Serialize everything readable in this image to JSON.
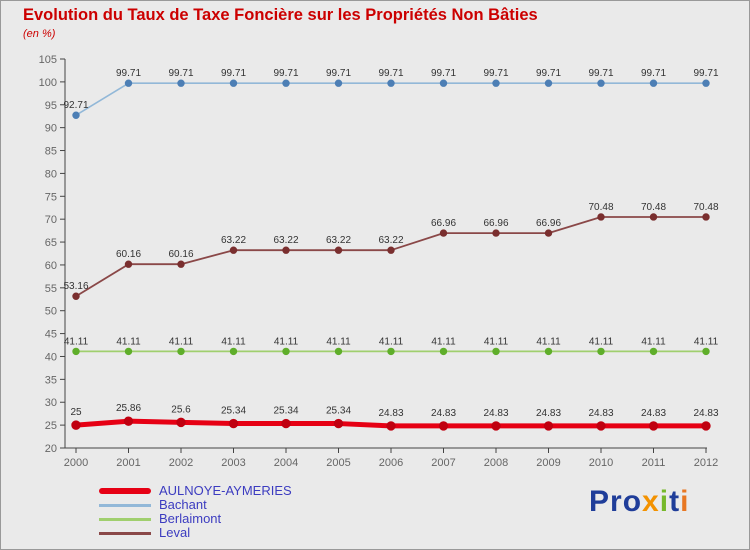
{
  "chart_data": {
    "type": "line",
    "title": "Evolution du Taux de Taxe Foncière sur les Propriétés Non Bâties",
    "subtitle": "(en %)",
    "x": [
      2000,
      2001,
      2002,
      2003,
      2004,
      2005,
      2006,
      2007,
      2008,
      2009,
      2010,
      2011,
      2012
    ],
    "ylim": [
      20,
      105
    ],
    "ytick_step": 5,
    "grid": false,
    "legend_position": "bottom-left",
    "series": [
      {
        "name": "AULNOYE-AYMERIES",
        "line_color": "#e60014",
        "marker_color": "#c00010",
        "line_width": 5,
        "marker_radius": 4.2,
        "values": [
          25,
          25.86,
          25.6,
          25.34,
          25.34,
          25.34,
          24.83,
          24.83,
          24.83,
          24.83,
          24.83,
          24.83,
          24.83
        ]
      },
      {
        "name": "Bachant",
        "line_color": "#92b8d8",
        "marker_color": "#4d7fb5",
        "line_width": 1.6,
        "marker_radius": 3.2,
        "values": [
          92.71,
          99.71,
          99.71,
          99.71,
          99.71,
          99.71,
          99.71,
          99.71,
          99.71,
          99.71,
          99.71,
          99.71,
          99.71
        ]
      },
      {
        "name": "Berlaimont",
        "line_color": "#a0cf6e",
        "marker_color": "#5fae2a",
        "line_width": 1.8,
        "marker_radius": 3.2,
        "values": [
          41.11,
          41.11,
          41.11,
          41.11,
          41.11,
          41.11,
          41.11,
          41.11,
          41.11,
          41.11,
          41.11,
          41.11,
          41.11
        ]
      },
      {
        "name": "Leval",
        "line_color": "#8a4848",
        "marker_color": "#7a2f2f",
        "line_width": 1.8,
        "marker_radius": 3.2,
        "values": [
          53.16,
          60.16,
          60.16,
          63.22,
          63.22,
          63.22,
          63.22,
          66.96,
          66.96,
          66.96,
          70.48,
          70.48,
          70.48
        ]
      }
    ]
  },
  "logo": {
    "text": "Proxiti",
    "letters": [
      {
        "ch": "P",
        "color": "#1f3d99"
      },
      {
        "ch": "r",
        "color": "#1f3d99"
      },
      {
        "ch": "o",
        "color": "#1f3d99"
      },
      {
        "ch": "x",
        "color": "#f39200"
      },
      {
        "ch": "i",
        "color": "#76b82a"
      },
      {
        "ch": "t",
        "color": "#1f3d99"
      },
      {
        "ch": "i",
        "color": "#e87722"
      }
    ]
  }
}
